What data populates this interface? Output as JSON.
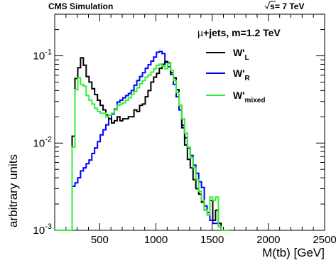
{
  "header": {
    "left": "CMS Simulation",
    "right_root": "s",
    "right_rest": " = 7 TeV"
  },
  "chart_data": {
    "type": "line",
    "drawstyle": "step-histogram",
    "xlabel": "M(tb) [GeV]",
    "ylabel": "arbitrary units",
    "xlim": [
      100,
      2500
    ],
    "ylim": [
      0.001,
      0.3
    ],
    "yscale": "log",
    "x_ticks": [
      500,
      1000,
      1500,
      2000,
      2500
    ],
    "y_ticks": [
      {
        "value": 0.001,
        "base": "10",
        "exp": "-3"
      },
      {
        "value": 0.01,
        "base": "10",
        "exp": "-2"
      },
      {
        "value": 0.1,
        "base": "10",
        "exp": "-1"
      }
    ],
    "annotation": {
      "mu": "µ",
      "text": "+jets,  m=1.2 TeV"
    },
    "legend": {
      "placement": "top-right"
    },
    "bin_start": 230,
    "bin_width": 25,
    "series": [
      {
        "name": "W'L",
        "label_main": "W'",
        "label_sub": "L",
        "color": "#000000",
        "values": [
          0.001,
          0.012,
          0.055,
          0.073,
          0.095,
          0.078,
          0.058,
          0.05,
          0.042,
          0.036,
          0.031,
          0.027,
          0.024,
          0.021,
          0.019,
          0.017,
          0.018,
          0.02,
          0.018,
          0.019,
          0.019,
          0.02,
          0.02,
          0.024,
          0.023,
          0.027,
          0.028,
          0.034,
          0.04,
          0.05,
          0.057,
          0.063,
          0.072,
          0.08,
          0.086,
          0.083,
          0.064,
          0.056,
          0.041,
          0.027,
          0.015,
          0.0095,
          0.0065,
          0.0052,
          0.0038,
          0.003,
          0.0026,
          0.0021,
          0.0017,
          0.0015,
          0.0022,
          0.0013,
          0.0017,
          0.0012,
          0.001,
          0.001,
          0.001
        ]
      },
      {
        "name": "W'R",
        "label_main": "W'",
        "label_sub": "R",
        "color": "#0000ff",
        "values": [
          0.001,
          0.0032,
          0.0035,
          0.004,
          0.0048,
          0.0052,
          0.0058,
          0.0064,
          0.0076,
          0.0088,
          0.0104,
          0.0124,
          0.0142,
          0.0162,
          0.019,
          0.0215,
          0.0245,
          0.0295,
          0.031,
          0.033,
          0.035,
          0.037,
          0.04,
          0.046,
          0.052,
          0.058,
          0.064,
          0.072,
          0.079,
          0.087,
          0.097,
          0.11,
          0.112,
          0.106,
          0.084,
          0.075,
          0.061,
          0.047,
          0.034,
          0.024,
          0.016,
          0.0115,
          0.0088,
          0.0072,
          0.0056,
          0.0045,
          0.0036,
          0.0031,
          0.0019,
          0.0016,
          0.0013,
          0.0012,
          0.0012,
          0.0011,
          0.001,
          0.001,
          0.001
        ]
      },
      {
        "name": "W'mixed",
        "label_main": "W'",
        "label_sub": "mixed",
        "color": "#33ee33",
        "values": [
          0.001,
          0.009,
          0.041,
          0.056,
          0.047,
          0.045,
          0.035,
          0.031,
          0.028,
          0.025,
          0.023,
          0.022,
          0.022,
          0.02,
          0.021,
          0.022,
          0.024,
          0.027,
          0.028,
          0.029,
          0.031,
          0.033,
          0.036,
          0.039,
          0.043,
          0.048,
          0.052,
          0.057,
          0.06,
          0.065,
          0.071,
          0.078,
          0.08,
          0.076,
          0.071,
          0.082,
          0.068,
          0.052,
          0.038,
          0.027,
          0.019,
          0.013,
          0.009,
          0.0068,
          0.0052,
          0.0038,
          0.0028,
          0.0022,
          0.0017,
          0.0015,
          0.0024,
          0.0022,
          0.0024,
          0.0011,
          0.001,
          0.001,
          0.001
        ]
      }
    ]
  }
}
